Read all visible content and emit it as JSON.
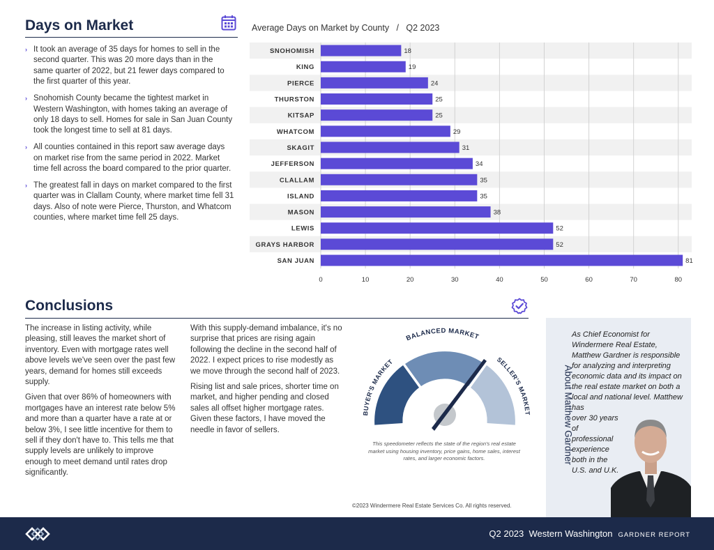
{
  "left_section": {
    "title": "Days on Market",
    "bullets": [
      "It took an average of 35 days for homes to sell in the second quarter. This was 20 more days than in the same quarter of 2022, but 21 fewer days compared to the first quarter of this year.",
      "Snohomish County became the tightest market in Western Washington, with homes taking an average of only 18 days to sell. Homes for sale in San Juan County took the longest time to sell at 81 days.",
      "All counties contained in this report saw average days on market rise from the same period in 2022. Market time fell across the board compared to the prior quarter.",
      "The greatest fall in days on market compared to the first quarter was in Clallam County, where market time fell 31 days. Also of note were Pierce, Thurston, and Whatcom counties, where market time fell 25 days."
    ]
  },
  "chart_data": {
    "type": "bar",
    "orientation": "horizontal",
    "title": "Average Days on Market by County   /   Q2 2023",
    "categories": [
      "SNOHOMISH",
      "KING",
      "PIERCE",
      "THURSTON",
      "KITSAP",
      "WHATCOM",
      "SKAGIT",
      "JEFFERSON",
      "CLALLAM",
      "ISLAND",
      "MASON",
      "LEWIS",
      "GRAYS HARBOR",
      "SAN JUAN"
    ],
    "values": [
      18,
      19,
      24,
      25,
      25,
      29,
      31,
      34,
      35,
      35,
      38,
      52,
      52,
      81
    ],
    "xticks": [
      0,
      10,
      20,
      30,
      40,
      50,
      60,
      70,
      80
    ],
    "xlim": [
      0,
      83
    ],
    "grid": true,
    "bar_color": "#5b4ad6"
  },
  "conclusions": {
    "title": "Conclusions",
    "col1": [
      "The increase in listing activity, while pleasing, still leaves the market short of inventory. Even with mortgage rates well above levels we've seen over the past few years, demand for homes still exceeds supply.",
      "Given that over 86% of homeowners with mortgages have an interest rate below 5% and more than a quarter have a rate at or below 3%, I see little incentive for them to sell if they don't have to. This tells me that supply levels are unlikely to improve enough to meet demand until rates drop significantly."
    ],
    "col2": [
      "With this supply-demand imbalance, it's no surprise that prices are rising again following the decline in the second half of 2022. I expect prices to rise modestly as we move through the second half of 2023.",
      "Rising list and sale prices, shorter time on market, and higher pending and closed sales all offset higher mortgage rates. Given these factors, I have moved the needle in favor of sellers."
    ]
  },
  "gauge": {
    "labels": [
      "BUYER'S MARKET",
      "BALANCED MARKET",
      "SELLER'S MARKET"
    ],
    "note": "This speedometer reflects the state of the region's real estate market using housing inventory, price gains, home sales, interest rates, and larger economic factors.",
    "colors": [
      "#2e5180",
      "#6e8db5",
      "#b3c3d8"
    ]
  },
  "copyright": "©2023 Windermere Real Estate Services Co. All rights reserved.",
  "about": {
    "title": "About Matthew Gardner",
    "text_wide": "As Chief Economist for Windermere Real Estate, Matthew Gardner is responsible for analyzing and interpreting economic data and its impact on the real estate market on both a local and national level. Matthew has",
    "text_narrow": "over 30 years of professional experience both in the U.S. and U.K."
  },
  "footer": {
    "text": "Q2 2023  Western Washington",
    "brand": "GARDNER REPORT"
  },
  "icons": {
    "calendar": "calendar-icon",
    "check": "check-badge-icon",
    "logo": "windermere-logo-icon"
  }
}
